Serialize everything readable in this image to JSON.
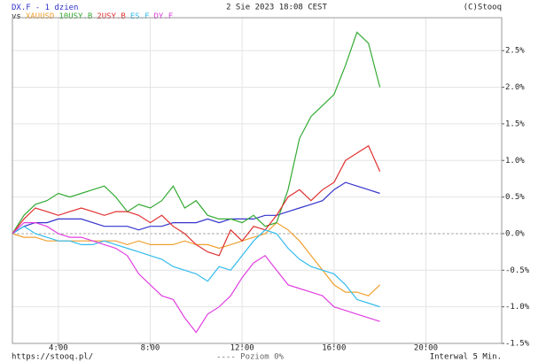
{
  "chart_data": {
    "type": "line",
    "subtitle": "- 1 dzien",
    "legend_prefix": "vs",
    "date": "2 Sie 2023 18:08 CEST",
    "source": "(C)Stooq",
    "url": "https://stooq.pl/",
    "zero_label": "---- Poziom 0%",
    "interval": "Interwal 5 Min.",
    "x": [
      2,
      2.5,
      3,
      3.5,
      4,
      4.5,
      5,
      5.5,
      6,
      6.5,
      7,
      7.5,
      8,
      8.5,
      9,
      9.5,
      10,
      10.5,
      11,
      11.5,
      12,
      12.5,
      13,
      13.5,
      14,
      14.5,
      15,
      15.5,
      16,
      16.5,
      17,
      17.5,
      18
    ],
    "xlim": [
      2,
      23.3
    ],
    "xticks": [
      {
        "value": 4,
        "label": "4:00"
      },
      {
        "value": 8,
        "label": "8:00"
      },
      {
        "value": 12,
        "label": "12:00"
      },
      {
        "value": 16,
        "label": "16:00"
      },
      {
        "value": 20,
        "label": "20:00"
      }
    ],
    "ylim": [
      -1.5,
      2.95
    ],
    "yticks": [
      {
        "value": -1.5,
        "label": "-1.5%"
      },
      {
        "value": -1,
        "label": "-1.0%"
      },
      {
        "value": -0.5,
        "label": "-0.5%"
      },
      {
        "value": 0,
        "label": "0.0%"
      },
      {
        "value": 0.5,
        "label": "0.5%"
      },
      {
        "value": 1,
        "label": "1.0%"
      },
      {
        "value": 1.5,
        "label": "1.5%"
      },
      {
        "value": 2,
        "label": "2.0%"
      },
      {
        "value": 2.5,
        "label": "2.5%"
      }
    ],
    "grid": true,
    "series": [
      {
        "name": "DX.F",
        "color": "#3333cc",
        "values": [
          0,
          0.1,
          0.15,
          0.15,
          0.2,
          0.2,
          0.2,
          0.15,
          0.1,
          0.1,
          0.1,
          0.05,
          0.1,
          0.1,
          0.15,
          0.15,
          0.15,
          0.2,
          0.15,
          0.2,
          0.2,
          0.2,
          0.25,
          0.25,
          0.3,
          0.35,
          0.4,
          0.45,
          0.6,
          0.7,
          0.65,
          0.6,
          0.55
        ]
      },
      {
        "name": "XAUUSD",
        "color": "#f0a030",
        "values": [
          0,
          -0.05,
          -0.05,
          -0.1,
          -0.1,
          -0.1,
          -0.1,
          -0.1,
          -0.1,
          -0.1,
          -0.15,
          -0.1,
          -0.15,
          -0.15,
          -0.15,
          -0.1,
          -0.15,
          -0.15,
          -0.2,
          -0.15,
          -0.1,
          -0.05,
          0,
          0.15,
          0.05,
          -0.1,
          -0.3,
          -0.5,
          -0.7,
          -0.8,
          -0.8,
          -0.85,
          -0.7
        ]
      },
      {
        "name": "10USY.B",
        "color": "#33aa33",
        "values": [
          0,
          0.25,
          0.4,
          0.45,
          0.55,
          0.5,
          0.55,
          0.6,
          0.65,
          0.5,
          0.3,
          0.4,
          0.35,
          0.45,
          0.65,
          0.35,
          0.45,
          0.25,
          0.2,
          0.2,
          0.15,
          0.25,
          0.1,
          0.15,
          0.6,
          1.3,
          1.6,
          1.75,
          1.9,
          2.3,
          2.75,
          2.6,
          2.0
        ]
      },
      {
        "name": "2USY.B",
        "color": "#e03030",
        "values": [
          0,
          0.2,
          0.35,
          0.3,
          0.25,
          0.3,
          0.35,
          0.3,
          0.25,
          0.3,
          0.3,
          0.25,
          0.15,
          0.25,
          0.1,
          0,
          -0.15,
          -0.25,
          -0.3,
          0.05,
          -0.1,
          0.1,
          0.05,
          0.25,
          0.5,
          0.6,
          0.45,
          0.6,
          0.7,
          1.0,
          1.1,
          1.2,
          0.85
        ]
      },
      {
        "name": "ES.F",
        "color": "#33bbee",
        "values": [
          0,
          0.1,
          0,
          -0.05,
          -0.1,
          -0.1,
          -0.15,
          -0.15,
          -0.1,
          -0.15,
          -0.2,
          -0.25,
          -0.3,
          -0.35,
          -0.45,
          -0.5,
          -0.55,
          -0.65,
          -0.45,
          -0.5,
          -0.3,
          -0.1,
          0.05,
          0,
          -0.2,
          -0.35,
          -0.45,
          -0.5,
          -0.55,
          -0.7,
          -0.9,
          -0.95,
          -1.0
        ]
      },
      {
        "name": "DY.F",
        "color": "#e040e0",
        "values": [
          0,
          0.15,
          0.15,
          0.1,
          0,
          -0.05,
          -0.05,
          -0.1,
          -0.15,
          -0.2,
          -0.3,
          -0.55,
          -0.7,
          -0.85,
          -0.9,
          -1.15,
          -1.35,
          -1.1,
          -1.0,
          -0.85,
          -0.6,
          -0.4,
          -0.3,
          -0.5,
          -0.7,
          -0.75,
          -0.8,
          -0.85,
          -1.0,
          -1.05,
          -1.1,
          -1.15,
          -1.2
        ]
      }
    ]
  }
}
